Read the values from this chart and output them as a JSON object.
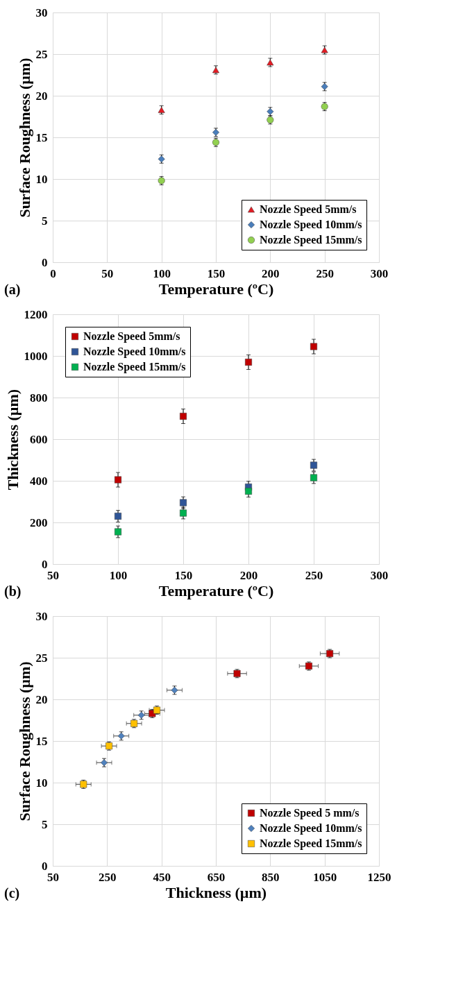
{
  "chart_data": [
    {
      "type": "scatter",
      "xlabel": "Temperature (ºC)",
      "ylabel": "Surface Roughness (µm)",
      "annotations": [
        "(a)"
      ],
      "xlim": [
        0,
        300
      ],
      "xticks": [
        0,
        50,
        100,
        150,
        200,
        250,
        300
      ],
      "ylim": [
        0,
        30
      ],
      "yticks": [
        0,
        5,
        10,
        15,
        20,
        25,
        30
      ],
      "grid": true,
      "legend": "bottom right",
      "series": [
        {
          "name": "Nozzle Speed 5mm/s",
          "color": "#e31b23",
          "marker": "triangle",
          "x": [
            100,
            150,
            200,
            250
          ],
          "values": [
            18.3,
            23.1,
            24.0,
            25.5
          ],
          "errors": [
            0.5,
            0.5,
            0.5,
            0.5
          ]
        },
        {
          "name": "Nozzle Speed 10mm/s",
          "color": "#4a7ebb",
          "marker": "diamond",
          "x": [
            100,
            150,
            200,
            250
          ],
          "values": [
            12.4,
            15.6,
            18.1,
            21.1
          ],
          "errors": [
            0.5,
            0.5,
            0.5,
            0.5
          ]
        },
        {
          "name": "Nozzle Speed 15mm/s",
          "color": "#92d050",
          "marker": "circle",
          "x": [
            100,
            150,
            200,
            250
          ],
          "values": [
            9.8,
            14.4,
            17.1,
            18.7
          ],
          "errors": [
            0.5,
            0.5,
            0.5,
            0.5
          ]
        }
      ]
    },
    {
      "type": "scatter",
      "xlabel": "Temperature (ºC)",
      "ylabel": "Thickness (µm)",
      "annotations": [
        "(b)"
      ],
      "xlim": [
        50,
        300
      ],
      "xticks": [
        50,
        100,
        150,
        200,
        250,
        300
      ],
      "ylim": [
        0,
        1200
      ],
      "yticks": [
        0,
        200,
        400,
        600,
        800,
        1000,
        1200
      ],
      "grid": true,
      "legend": "top left",
      "series": [
        {
          "name": "Nozzle Speed 5mm/s",
          "color": "#c00000",
          "marker": "square",
          "x": [
            100,
            150,
            200,
            250
          ],
          "values": [
            405,
            710,
            970,
            1045
          ],
          "errors": [
            35,
            35,
            35,
            35
          ]
        },
        {
          "name": "Nozzle Speed 10mm/s",
          "color": "#2f5597",
          "marker": "square",
          "x": [
            100,
            150,
            200,
            250
          ],
          "values": [
            230,
            295,
            370,
            475
          ],
          "errors": [
            28,
            28,
            28,
            28
          ]
        },
        {
          "name": "Nozzle Speed 15mm/s",
          "color": "#00b050",
          "marker": "square",
          "x": [
            100,
            150,
            200,
            250
          ],
          "values": [
            155,
            245,
            350,
            415
          ],
          "errors": [
            28,
            28,
            28,
            28
          ]
        }
      ]
    },
    {
      "type": "scatter",
      "xlabel": "Thickness (µm)",
      "ylabel": "Surface Roughness (µm)",
      "annotations": [
        "(c)"
      ],
      "xlim": [
        50,
        1250
      ],
      "xticks": [
        50,
        250,
        450,
        650,
        850,
        1050,
        1250
      ],
      "ylim": [
        0,
        30
      ],
      "yticks": [
        0,
        5,
        10,
        15,
        20,
        25,
        30
      ],
      "grid": true,
      "legend": "bottom right",
      "series": [
        {
          "name": "Nozzle Speed 5 mm/s",
          "color": "#c00000",
          "marker": "square",
          "x": [
            416,
            728,
            992,
            1069
          ],
          "values": [
            18.3,
            23.1,
            24.0,
            25.5
          ],
          "errors": [
            0.5,
            0.5,
            0.5,
            0.5
          ],
          "xerrors": [
            28,
            35,
            35,
            35
          ]
        },
        {
          "name": "Nozzle Speed 10mm/s",
          "color": "#4f81bd",
          "marker": "diamond",
          "x": [
            239,
            302,
            376,
            498
          ],
          "values": [
            12.4,
            15.6,
            18.1,
            21.1
          ],
          "errors": [
            0.5,
            0.5,
            0.5,
            0.5
          ],
          "xerrors": [
            28,
            28,
            28,
            28
          ]
        },
        {
          "name": "Nozzle Speed 15mm/s",
          "color": "#ffc000",
          "marker": "square",
          "x": [
            163,
            257,
            349,
            433
          ],
          "values": [
            9.8,
            14.4,
            17.1,
            18.7
          ],
          "errors": [
            0.5,
            0.5,
            0.5,
            0.5
          ],
          "xerrors": [
            28,
            28,
            28,
            28
          ]
        }
      ]
    }
  ]
}
